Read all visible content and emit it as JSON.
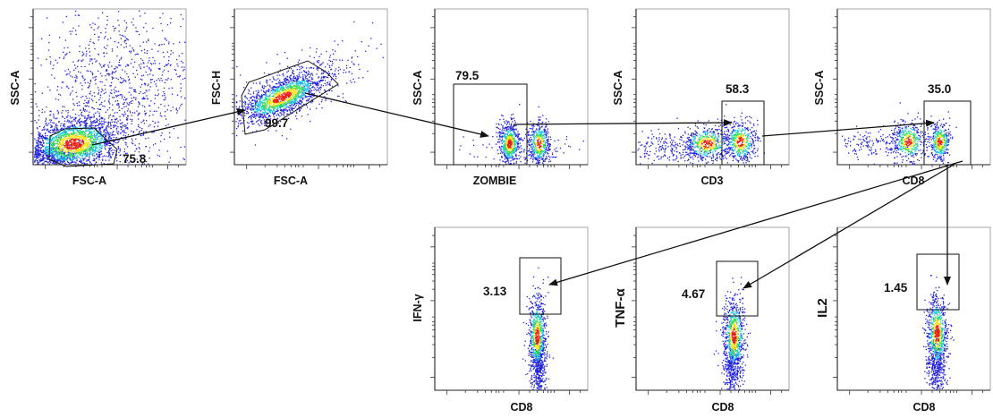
{
  "colors": {
    "density_low": "#2222dd",
    "density_mid": "#22c8e0",
    "density_midhigh": "#33dd55",
    "density_high": "#ffe21a",
    "density_peak": "#e81e12"
  },
  "plots": [
    {
      "id": "p1",
      "x_label": "FSC-A",
      "y_label": "SSC-A",
      "gate_value": "75.8"
    },
    {
      "id": "p2",
      "x_label": "FSC-A",
      "y_label": "FSC-H",
      "gate_value": "99.7"
    },
    {
      "id": "p3",
      "x_label": "ZOMBIE",
      "y_label": "SSC-A",
      "gate_value": "79.5"
    },
    {
      "id": "p4",
      "x_label": "CD3",
      "y_label": "SSC-A",
      "gate_value": "58.3"
    },
    {
      "id": "p5",
      "x_label": "CD8",
      "y_label": "SSC-A",
      "gate_value": "35.0"
    },
    {
      "id": "p6",
      "x_label": "CD8",
      "y_label": "IFN-γ",
      "gate_value": "3.13"
    },
    {
      "id": "p7",
      "x_label": "CD8",
      "y_label": "TNF-α",
      "gate_value": "4.67"
    },
    {
      "id": "p8",
      "x_label": "CD8",
      "y_label": "IL2",
      "gate_value": "1.45"
    }
  ]
}
